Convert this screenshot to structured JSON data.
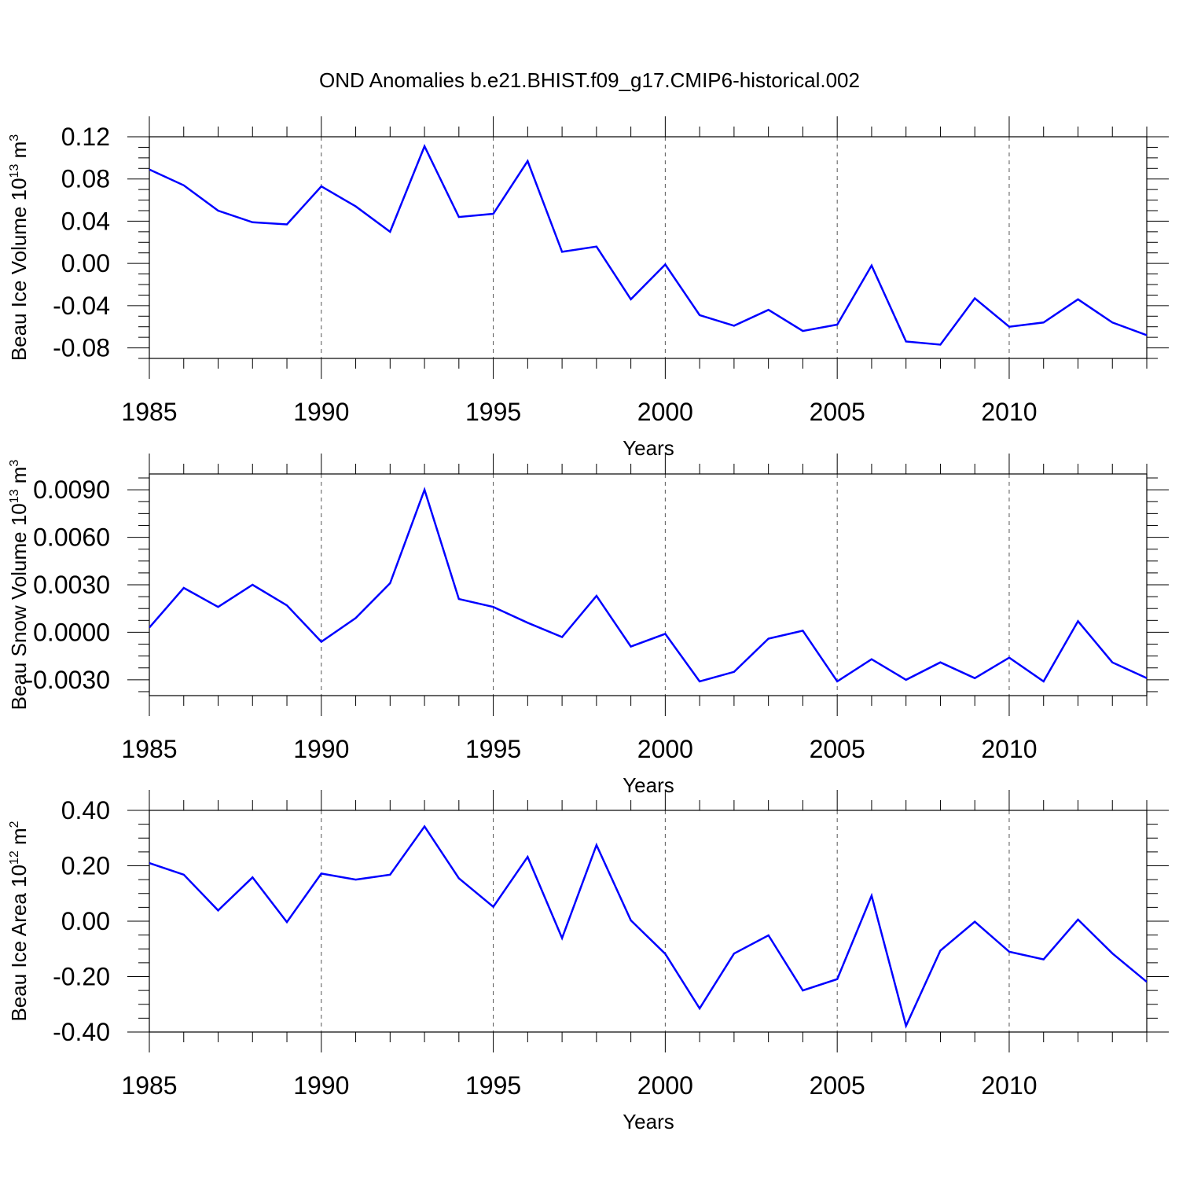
{
  "title": "OND Anomalies b.e21.BHIST.f09_g17.CMIP6-historical.002",
  "colors": {
    "line": "#0000ff",
    "frame": "#000000",
    "grid": "#555555"
  },
  "chart_data": [
    {
      "type": "line",
      "name": "beau-ice-volume",
      "ylabel_main": "Beau Ice Volume 10",
      "ylabel_exp": "13",
      "ylabel_unit": " m",
      "ylabel_unit_exp": "3",
      "xlabel": "Years",
      "xlim": [
        1985,
        2014
      ],
      "ylim": [
        -0.09,
        0.12
      ],
      "xticks": [
        1985,
        1990,
        1995,
        2000,
        2005,
        2010
      ],
      "xtick_labels": [
        "1985",
        "1990",
        "1995",
        "2000",
        "2005",
        "2010"
      ],
      "yticks": [
        -0.08,
        -0.04,
        0.0,
        0.04,
        0.08,
        0.12
      ],
      "ytick_labels": [
        "-0.08",
        "-0.04",
        "0.00",
        "0.04",
        "0.08",
        "0.12"
      ],
      "x": [
        1985,
        1986,
        1987,
        1988,
        1989,
        1990,
        1991,
        1992,
        1993,
        1994,
        1995,
        1996,
        1997,
        1998,
        1999,
        2000,
        2001,
        2002,
        2003,
        2004,
        2005,
        2006,
        2007,
        2008,
        2009,
        2010,
        2011,
        2012,
        2013,
        2014
      ],
      "values": [
        0.089,
        0.074,
        0.05,
        0.039,
        0.037,
        0.073,
        0.054,
        0.03,
        0.111,
        0.044,
        0.047,
        0.097,
        0.011,
        0.016,
        -0.034,
        -0.001,
        -0.049,
        -0.059,
        -0.044,
        -0.064,
        -0.058,
        -0.002,
        -0.074,
        -0.077,
        -0.033,
        -0.06,
        -0.056,
        -0.034,
        -0.056,
        -0.068
      ]
    },
    {
      "type": "line",
      "name": "beau-snow-volume",
      "ylabel_main": "Beau Snow Volume 10",
      "ylabel_exp": "13",
      "ylabel_unit": " m",
      "ylabel_unit_exp": "3",
      "xlabel": "Years",
      "xlim": [
        1985,
        2014
      ],
      "ylim": [
        -0.004,
        0.01
      ],
      "xticks": [
        1985,
        1990,
        1995,
        2000,
        2005,
        2010
      ],
      "xtick_labels": [
        "1985",
        "1990",
        "1995",
        "2000",
        "2005",
        "2010"
      ],
      "yticks": [
        -0.003,
        0.0,
        0.003,
        0.006,
        0.009
      ],
      "ytick_labels": [
        "-0.0030",
        "0.0000",
        "0.0030",
        "0.0060",
        "0.0090"
      ],
      "x": [
        1985,
        1986,
        1987,
        1988,
        1989,
        1990,
        1991,
        1992,
        1993,
        1994,
        1995,
        1996,
        1997,
        1998,
        1999,
        2000,
        2001,
        2002,
        2003,
        2004,
        2005,
        2006,
        2007,
        2008,
        2009,
        2010,
        2011,
        2012,
        2013,
        2014
      ],
      "values": [
        0.0003,
        0.0028,
        0.0016,
        0.003,
        0.0017,
        -0.0006,
        0.0009,
        0.0031,
        0.009,
        0.0021,
        0.0016,
        0.0006,
        -0.0003,
        0.0023,
        -0.0009,
        -0.0001,
        -0.0031,
        -0.0025,
        -0.0004,
        0.0001,
        -0.0031,
        -0.0017,
        -0.003,
        -0.0019,
        -0.0029,
        -0.0016,
        -0.0031,
        0.0007,
        -0.0019,
        -0.0029
      ]
    },
    {
      "type": "line",
      "name": "beau-ice-area",
      "ylabel_main": "Beau Ice Area 10",
      "ylabel_exp": "12",
      "ylabel_unit": " m",
      "ylabel_unit_exp": "2",
      "xlabel": "Years",
      "xlim": [
        1985,
        2014
      ],
      "ylim": [
        -0.4,
        0.4
      ],
      "xticks": [
        1985,
        1990,
        1995,
        2000,
        2005,
        2010
      ],
      "xtick_labels": [
        "1985",
        "1990",
        "1995",
        "2000",
        "2005",
        "2010"
      ],
      "yticks": [
        -0.4,
        -0.2,
        0.0,
        0.2,
        0.4
      ],
      "ytick_labels": [
        "-0.40",
        "-0.20",
        "0.00",
        "0.20",
        "0.40"
      ],
      "x": [
        1985,
        1986,
        1987,
        1988,
        1989,
        1990,
        1991,
        1992,
        1993,
        1994,
        1995,
        1996,
        1997,
        1998,
        1999,
        2000,
        2001,
        2002,
        2003,
        2004,
        2005,
        2006,
        2007,
        2008,
        2009,
        2010,
        2011,
        2012,
        2013,
        2014
      ],
      "values": [
        0.21,
        0.168,
        0.039,
        0.158,
        -0.003,
        0.172,
        0.15,
        0.168,
        0.342,
        0.155,
        0.052,
        0.232,
        -0.061,
        0.275,
        0.003,
        -0.118,
        -0.315,
        -0.117,
        -0.051,
        -0.25,
        -0.209,
        0.092,
        -0.378,
        -0.106,
        -0.002,
        -0.11,
        -0.138,
        0.006,
        -0.116,
        -0.219
      ]
    }
  ]
}
